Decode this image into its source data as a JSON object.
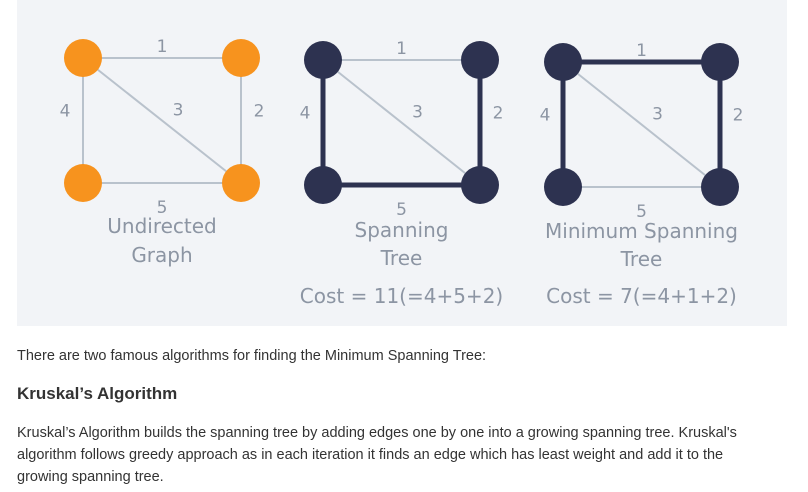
{
  "graphs": [
    {
      "title_lines": [
        "Undirected",
        "Graph"
      ],
      "cost": "",
      "node_color": "#f7931e",
      "edges": [
        {
          "weight": "1",
          "selected": false
        },
        {
          "weight": "4",
          "selected": false
        },
        {
          "weight": "2",
          "selected": false
        },
        {
          "weight": "3",
          "selected": false
        },
        {
          "weight": "5",
          "selected": false
        }
      ]
    },
    {
      "title_lines": [
        "Spanning",
        "Tree"
      ],
      "cost": "Cost = 11(=4+5+2)",
      "node_color": "#2d3250",
      "edges": [
        {
          "weight": "1",
          "selected": false
        },
        {
          "weight": "4",
          "selected": true
        },
        {
          "weight": "2",
          "selected": true
        },
        {
          "weight": "3",
          "selected": false
        },
        {
          "weight": "5",
          "selected": true
        }
      ]
    },
    {
      "title_lines": [
        "Minimum Spanning",
        "Tree"
      ],
      "cost": "Cost = 7(=4+1+2)",
      "node_color": "#2d3250",
      "edges": [
        {
          "weight": "1",
          "selected": true
        },
        {
          "weight": "4",
          "selected": true
        },
        {
          "weight": "2",
          "selected": true
        },
        {
          "weight": "3",
          "selected": false
        },
        {
          "weight": "5",
          "selected": false
        }
      ]
    }
  ],
  "colors": {
    "edge_unselected": "#b9c2cc",
    "edge_selected": "#2d3250",
    "label": "#8c95a3"
  },
  "text": {
    "intro": "There are two famous algorithms for finding the Minimum Spanning Tree:",
    "heading": "Kruskal’s Algorithm",
    "paragraph": "Kruskal’s Algorithm builds the spanning tree by adding edges one by one into a growing spanning tree. Kruskal's algorithm follows greedy approach as in each iteration it finds an edge which has least weight and add it to the growing spanning tree."
  }
}
